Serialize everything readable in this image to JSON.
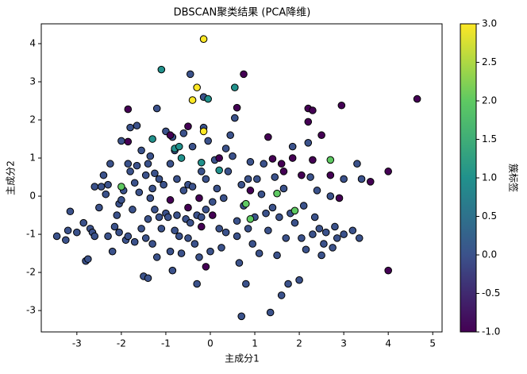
{
  "chart_data": {
    "type": "scatter",
    "title": "DBSCAN聚类结果 (PCA降维)",
    "x_label": "主成分1",
    "y_label": "主成分2",
    "xlim": [
      -3.8,
      5.21
    ],
    "ylim": [
      -3.56,
      4.52
    ],
    "xticks": [
      -3,
      -2,
      -1,
      0,
      1,
      2,
      3,
      4,
      5
    ],
    "yticks": [
      -3,
      -2,
      -1,
      0,
      1,
      2,
      3,
      4
    ],
    "colorbar": {
      "label": "簇标签",
      "lim": [
        -1,
        3
      ],
      "colormap": [
        "#440154",
        "#3b528b",
        "#21918c",
        "#5ec962",
        "#fde725"
      ],
      "ticks": [
        {
          "value": -1,
          "label": "-1.0"
        },
        {
          "value": -0.5,
          "label": "-0.5"
        },
        {
          "value": 0,
          "label": "0.0"
        },
        {
          "value": 0.5,
          "label": "0.5"
        },
        {
          "value": 1,
          "label": "1.0"
        },
        {
          "value": 1.5,
          "label": "1.5"
        },
        {
          "value": 2,
          "label": "2.0"
        },
        {
          "value": 2.5,
          "label": "2.5"
        },
        {
          "value": 3,
          "label": "3.0"
        }
      ]
    },
    "series": [
      {
        "label": 0,
        "x": [
          -3.45,
          -3.2,
          -3.15,
          -3.25,
          -3.0,
          -2.85,
          -2.8,
          -2.75,
          -2.7,
          -2.65,
          -2.6,
          -2.6,
          -2.5,
          -2.45,
          -2.4,
          -2.35,
          -2.3,
          -2.25,
          -2.2,
          -2.15,
          -2.1,
          -2.05,
          -2.05,
          -2.0,
          -2.0,
          -1.95,
          -1.9,
          -1.85,
          -1.8,
          -1.8,
          -1.75,
          -1.7,
          -1.7,
          -1.65,
          -1.65,
          -1.6,
          -1.55,
          -1.55,
          -1.5,
          -1.45,
          -1.45,
          -1.4,
          -1.4,
          -1.4,
          -1.35,
          -1.35,
          -1.3,
          -1.3,
          -1.25,
          -1.25,
          -1.2,
          -1.2,
          -1.15,
          -1.15,
          -1.1,
          -1.05,
          -1.0,
          -1.0,
          -0.95,
          -0.9,
          -0.9,
          -0.85,
          -0.85,
          -0.8,
          -0.8,
          -0.75,
          -0.75,
          -0.7,
          -0.65,
          -0.6,
          -0.55,
          -0.5,
          -0.5,
          -0.45,
          -0.45,
          -0.4,
          -0.4,
          -0.35,
          -0.3,
          -0.3,
          -0.25,
          -0.2,
          -0.2,
          -0.15,
          -0.15,
          -0.1,
          -0.1,
          -0.05,
          0.0,
          0.05,
          0.1,
          0.15,
          0.2,
          0.25,
          0.3,
          0.35,
          0.4,
          0.45,
          0.5,
          0.55,
          0.6,
          0.6,
          0.65,
          0.7,
          0.75,
          0.8,
          0.85,
          0.85,
          0.9,
          0.95,
          1.0,
          1.05,
          1.1,
          1.15,
          1.2,
          1.25,
          1.3,
          1.35,
          1.4,
          1.45,
          1.5,
          1.55,
          1.6,
          1.65,
          1.7,
          1.75,
          1.8,
          1.85,
          1.9,
          2.0,
          2.05,
          2.1,
          2.15,
          2.2,
          2.25,
          2.3,
          2.35,
          2.4,
          2.45,
          2.5,
          2.55,
          2.6,
          2.7,
          2.75,
          2.8,
          2.85,
          3.0,
          3.2,
          3.3,
          3.35,
          3.0,
          3.4,
          0.7,
          -1.85,
          -2.3,
          0.35,
          -0.6
        ],
        "y": [
          -1.05,
          -0.9,
          -0.4,
          -1.15,
          -0.95,
          -0.7,
          -1.7,
          -1.65,
          -0.85,
          -0.95,
          -1.05,
          0.25,
          -0.3,
          0.25,
          0.55,
          0.05,
          -1.05,
          0.85,
          -1.45,
          -0.8,
          -0.5,
          -0.2,
          -0.95,
          1.45,
          -0.1,
          0.15,
          -1.15,
          -1.05,
          0.65,
          1.8,
          -0.35,
          0.35,
          -1.2,
          1.85,
          0.8,
          0.1,
          1.2,
          -0.85,
          -2.1,
          0.55,
          -1.1,
          -0.6,
          -2.15,
          0.85,
          1.05,
          -0.05,
          -1.25,
          0.2,
          -0.35,
          0.6,
          2.3,
          -1.6,
          0.45,
          -0.55,
          -0.85,
          0.3,
          1.7,
          -0.45,
          -0.55,
          0.85,
          -1.45,
          -1.95,
          1.55,
          1.2,
          -0.9,
          0.45,
          -0.5,
          -1.05,
          -1.5,
          0.15,
          -0.6,
          0.3,
          -1.1,
          3.2,
          -0.7,
          0.25,
          1.3,
          -1.25,
          -2.3,
          -0.5,
          -1.6,
          0.65,
          -0.55,
          2.6,
          1.8,
          0.45,
          -0.35,
          1.45,
          -1.45,
          -0.15,
          0.95,
          0.2,
          -0.85,
          -1.35,
          -0.05,
          1.25,
          0.65,
          1.6,
          1.05,
          2.05,
          -1.05,
          -0.65,
          -1.75,
          0.3,
          -0.25,
          -2.3,
          0.45,
          -0.85,
          0.9,
          -1.25,
          -0.55,
          0.45,
          -1.5,
          0.05,
          0.85,
          -0.45,
          -0.9,
          -3.05,
          -0.3,
          0.5,
          -1.55,
          -0.55,
          -2.6,
          0.2,
          -1.1,
          -2.3,
          -0.45,
          1.3,
          -0.7,
          -2.2,
          -1.1,
          -0.25,
          -1.4,
          1.4,
          0.5,
          -1.0,
          -0.55,
          0.15,
          -0.85,
          -1.55,
          -1.25,
          -0.95,
          0.0,
          -1.35,
          -0.8,
          -1.1,
          -1.0,
          -0.9,
          0.85,
          -1.1,
          0.45,
          0.45,
          -3.15,
          0.85,
          0.3,
          -0.95,
          1.65
        ]
      },
      {
        "label": -1,
        "x": [
          -1.85,
          -1.85,
          0.75,
          0.6,
          -0.5,
          -0.9,
          2.2,
          2.3,
          2.2,
          2.5,
          2.95,
          1.3,
          1.4,
          1.6,
          1.85,
          1.65,
          2.05,
          2.3,
          2.7,
          2.9,
          3.6,
          4.0,
          4.65,
          4.0,
          0.9,
          -0.5,
          -0.2,
          -0.1,
          0.05,
          -0.9,
          0.2,
          -0.25
        ],
        "y": [
          2.28,
          1.43,
          3.2,
          2.32,
          1.83,
          1.6,
          2.3,
          2.25,
          1.95,
          1.6,
          2.38,
          1.55,
          0.98,
          0.85,
          1.0,
          0.65,
          0.55,
          0.95,
          0.55,
          -0.05,
          0.38,
          0.65,
          2.55,
          -1.95,
          0.15,
          -0.3,
          -0.8,
          -1.85,
          -0.5,
          -0.1,
          1.0,
          -0.05
        ]
      },
      {
        "label": 1,
        "x": [
          -1.1,
          0.55,
          -0.05,
          -1.3,
          -0.8,
          -0.7,
          -0.2,
          -0.65,
          0.2
        ],
        "y": [
          3.32,
          2.85,
          2.55,
          1.5,
          1.25,
          1.3,
          0.88,
          1.0,
          0.68
        ]
      },
      {
        "label": 2,
        "x": [
          2.7,
          0.9,
          0.8,
          1.5,
          1.9,
          -2.0
        ],
        "y": [
          0.95,
          -0.6,
          -0.2,
          0.07,
          -0.38,
          0.25
        ]
      },
      {
        "label": 3,
        "x": [
          -0.15,
          -0.3,
          -0.4,
          -0.15
        ],
        "y": [
          4.12,
          2.85,
          2.52,
          1.7
        ]
      }
    ]
  }
}
